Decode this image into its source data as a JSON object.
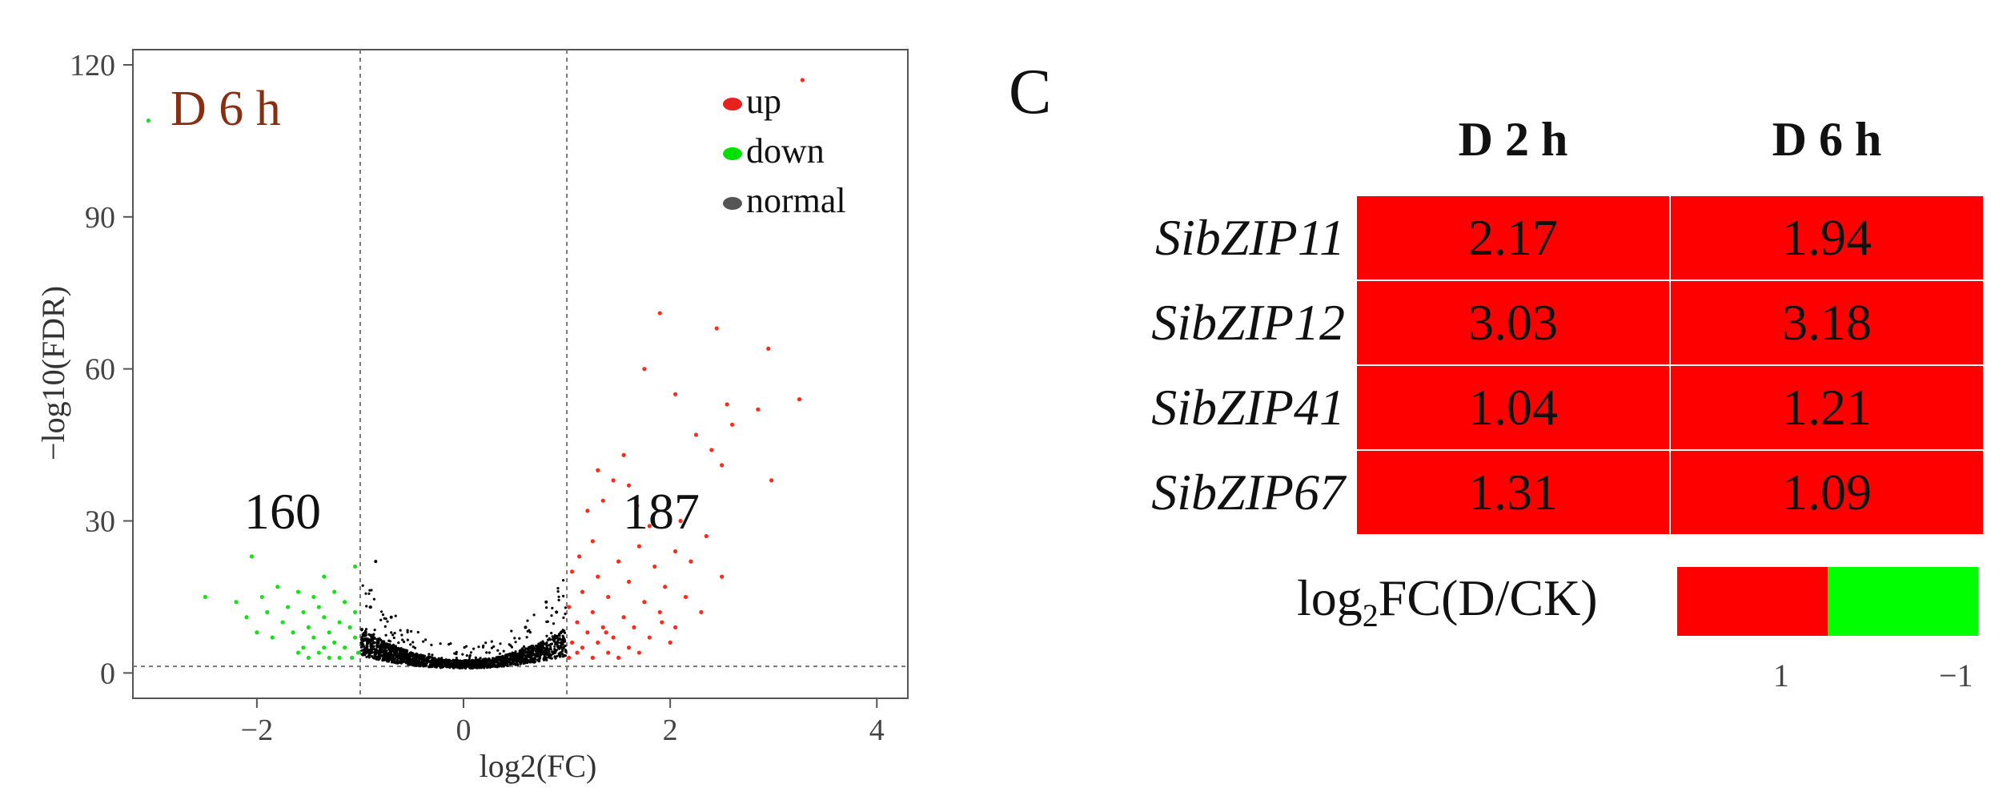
{
  "chart_data": [
    {
      "type": "scatter",
      "title": "D 6 h",
      "xlabel": "log2(FC)",
      "ylabel": "−log10(FDR)",
      "xlim": [
        -3.2,
        4.3
      ],
      "ylim": [
        -5,
        123
      ],
      "xticks": [
        -2,
        0,
        2,
        4
      ],
      "xtick_labels": [
        "−2",
        "0",
        "2",
        "4"
      ],
      "yticks": [
        0,
        30,
        60,
        90,
        120
      ],
      "ytick_labels": [
        "0",
        "30",
        "60",
        "90",
        "120"
      ],
      "thresholds": {
        "log2fc": [
          -1,
          1
        ],
        "neg_log10_fdr": 1.3
      },
      "legend": [
        {
          "label": "up",
          "color": "#e8211e"
        },
        {
          "label": "down",
          "color": "#00e000"
        },
        {
          "label": "normal",
          "color": "#555555"
        }
      ],
      "counts": {
        "down": "160",
        "up": "187"
      },
      "series": [
        {
          "name": "up",
          "color": "#ff2a1a",
          "points": [
            [
              3.28,
              117
            ],
            [
              1.9,
              71
            ],
            [
              2.45,
              68
            ],
            [
              2.95,
              64
            ],
            [
              1.75,
              60
            ],
            [
              3.25,
              54
            ],
            [
              2.55,
              53
            ],
            [
              2.85,
              52
            ],
            [
              2.05,
              55
            ],
            [
              2.6,
              49
            ],
            [
              2.25,
              47
            ],
            [
              1.55,
              43
            ],
            [
              1.3,
              40
            ],
            [
              2.4,
              44
            ],
            [
              2.5,
              41
            ],
            [
              1.45,
              38
            ],
            [
              1.6,
              37
            ],
            [
              2.98,
              38
            ],
            [
              1.35,
              34
            ],
            [
              1.68,
              33
            ],
            [
              1.2,
              32
            ],
            [
              1.8,
              29
            ],
            [
              2.1,
              30
            ],
            [
              2.35,
              27
            ],
            [
              1.25,
              26
            ],
            [
              1.7,
              25
            ],
            [
              2.05,
              24
            ],
            [
              1.12,
              23
            ],
            [
              1.5,
              22
            ],
            [
              2.2,
              22
            ],
            [
              1.85,
              21
            ],
            [
              1.05,
              20
            ],
            [
              1.3,
              19
            ],
            [
              2.5,
              19
            ],
            [
              1.6,
              18
            ],
            [
              1.95,
              17
            ],
            [
              1.15,
              16
            ],
            [
              1.4,
              15
            ],
            [
              2.15,
              15
            ],
            [
              1.75,
              14
            ],
            [
              1.02,
              13
            ],
            [
              1.25,
              12
            ],
            [
              1.9,
              12
            ],
            [
              2.3,
              12
            ],
            [
              1.55,
              11
            ],
            [
              1.1,
              10
            ],
            [
              1.35,
              9
            ],
            [
              1.65,
              9
            ],
            [
              2.05,
              9
            ],
            [
              1.2,
              8
            ],
            [
              1.45,
              7
            ],
            [
              1.8,
              7
            ],
            [
              1.05,
              6
            ],
            [
              1.3,
              6
            ],
            [
              1.6,
              5
            ],
            [
              1.1,
              4
            ],
            [
              1.4,
              4
            ],
            [
              1.02,
              3
            ],
            [
              1.25,
              3
            ],
            [
              1.5,
              3
            ],
            [
              1.7,
              4
            ],
            [
              2.0,
              6
            ],
            [
              1.15,
              5
            ],
            [
              1.38,
              8
            ],
            [
              1.92,
              10
            ]
          ]
        },
        {
          "name": "down",
          "color": "#16e016",
          "points": [
            [
              -3.05,
              109
            ],
            [
              -2.05,
              23
            ],
            [
              -1.05,
              21
            ],
            [
              -1.35,
              19
            ],
            [
              -2.5,
              15
            ],
            [
              -2.2,
              14
            ],
            [
              -1.8,
              17
            ],
            [
              -1.6,
              16
            ],
            [
              -1.45,
              15
            ],
            [
              -1.25,
              16
            ],
            [
              -1.15,
              14
            ],
            [
              -1.7,
              13
            ],
            [
              -1.9,
              12
            ],
            [
              -2.1,
              11
            ],
            [
              -1.55,
              12
            ],
            [
              -1.35,
              11
            ],
            [
              -1.05,
              12
            ],
            [
              -1.75,
              10
            ],
            [
              -1.5,
              9
            ],
            [
              -1.3,
              8
            ],
            [
              -1.2,
              10
            ],
            [
              -1.1,
              9
            ],
            [
              -1.65,
              8
            ],
            [
              -1.45,
              7
            ],
            [
              -1.25,
              6
            ],
            [
              -1.05,
              7
            ],
            [
              -1.85,
              7
            ],
            [
              -1.55,
              5
            ],
            [
              -1.35,
              5
            ],
            [
              -1.15,
              5
            ],
            [
              -1.02,
              4
            ],
            [
              -1.4,
              4
            ],
            [
              -1.2,
              3
            ],
            [
              -1.6,
              4
            ],
            [
              -1.3,
              3
            ],
            [
              -1.08,
              3
            ],
            [
              -1.5,
              3
            ],
            [
              -2.0,
              8
            ],
            [
              -1.95,
              15
            ],
            [
              -1.4,
              13
            ]
          ]
        },
        {
          "name": "normal",
          "color": "#000000",
          "distribution": "dense cluster along parabola y ≈ 0.9 + 2.5·x² for |log2FC| < 1; scattered outliers up to ≈22"
        }
      ]
    },
    {
      "type": "heatmap",
      "panel_label": "C",
      "columns": [
        "D 2 h",
        "D 6 h"
      ],
      "rows": [
        {
          "gene": "SibZIP11",
          "values": [
            "2.17",
            "1.94"
          ]
        },
        {
          "gene": "SibZIP12",
          "values": [
            "3.03",
            "3.18"
          ]
        },
        {
          "gene": "SibZIP41",
          "values": [
            "1.04",
            "1.21"
          ]
        },
        {
          "gene": "SibZIP67",
          "values": [
            "1.31",
            "1.09"
          ]
        }
      ],
      "legend": {
        "title_prefix": "log",
        "title_subscript": "2",
        "title_suffix": "FC(D/CK)",
        "high_color": "#ff0000",
        "low_color": "#00ff00",
        "tick_labels": [
          "1",
          "−1"
        ]
      }
    }
  ]
}
